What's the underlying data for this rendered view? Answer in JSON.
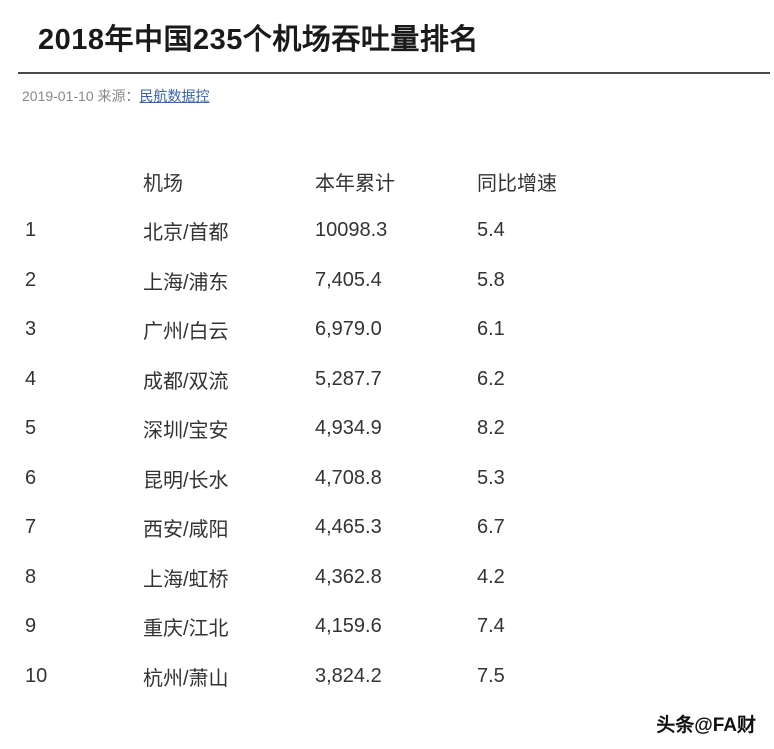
{
  "page": {
    "title": "2018年中国235个机场吞吐量排名",
    "date": "2019-01-10",
    "source_label": "来源：",
    "source_link": "民航数据控",
    "watermark": "头条@FA财"
  },
  "colors": {
    "link": "#3a62a8",
    "body_text": "#333333",
    "meta_text": "#888888",
    "rule": "#4a4a4a"
  },
  "chart_data": {
    "type": "table",
    "title": "2018年中国235个机场吞吐量排名",
    "columns": [
      "",
      "机场",
      "本年累计",
      "同比增速"
    ],
    "rows": [
      [
        "1",
        "北京/首都",
        "10098.3",
        "5.4"
      ],
      [
        "2",
        "上海/浦东",
        "7,405.4",
        "5.8"
      ],
      [
        "3",
        "广州/白云",
        "6,979.0",
        "6.1"
      ],
      [
        "4",
        "成都/双流",
        "5,287.7",
        "6.2"
      ],
      [
        "5",
        "深圳/宝安",
        "4,934.9",
        "8.2"
      ],
      [
        "6",
        "昆明/长水",
        "4,708.8",
        "5.3"
      ],
      [
        "7",
        "西安/咸阳",
        "4,465.3",
        "6.7"
      ],
      [
        "8",
        "上海/虹桥",
        "4,362.8",
        "4.2"
      ],
      [
        "9",
        "重庆/江北",
        "4,159.6",
        "7.4"
      ],
      [
        "10",
        "杭州/萧山",
        "3,824.2",
        "7.5"
      ]
    ]
  }
}
